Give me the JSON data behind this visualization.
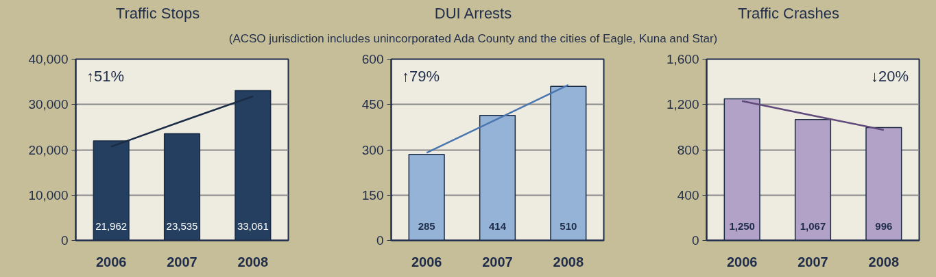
{
  "chart_data": [
    {
      "type": "bar",
      "title": "Traffic Stops",
      "categories": [
        "2006",
        "2007",
        "2008"
      ],
      "series": [
        {
          "color": "#243f60",
          "values": [
            21962,
            23535,
            33061
          ],
          "value_labels": [
            "21,962",
            "23,535",
            "33,061"
          ]
        },
        {
          "type": "line",
          "color": "#1a2b45",
          "values": [
            20700,
            26300,
            31800
          ]
        }
      ],
      "ylim": [
        0,
        40000
      ],
      "yticks": [
        0,
        {
          "value": 10000,
          "label": "10,000"
        },
        {
          "value": 20000,
          "label": "20,000"
        },
        {
          "value": 30000,
          "label": "30,000"
        },
        {
          "value": 40000,
          "label": "40,000"
        }
      ],
      "grid": "y",
      "annotations": [
        "↑51%"
      ]
    },
    {
      "type": "bar",
      "title": "DUI Arrests",
      "subtitle": "(ACSO jurisdiction includes unincorporated Ada County and the cities of Eagle, Kuna and Star)",
      "categories": [
        "2006",
        "2007",
        "2008"
      ],
      "series": [
        {
          "color": "#95b3d7",
          "values": [
            285,
            414,
            510
          ],
          "value_labels": [
            "285",
            "414",
            "510"
          ]
        },
        {
          "type": "line",
          "color": "#4a76b0",
          "values": [
            290,
            402,
            515
          ]
        }
      ],
      "ylim": [
        0,
        600
      ],
      "yticks": [
        0,
        150,
        300,
        450,
        600
      ],
      "grid": "y",
      "annotations": [
        "↑79%"
      ]
    },
    {
      "type": "bar",
      "title": "Traffic Crashes",
      "categories": [
        "2006",
        "2007",
        "2008"
      ],
      "series": [
        {
          "color": "#b3a2c7",
          "values": [
            1250,
            1067,
            996
          ],
          "value_labels": [
            "1,250",
            "1,067",
            "996"
          ]
        },
        {
          "type": "line",
          "color": "#604a7b",
          "values": [
            1230,
            1102,
            975
          ]
        }
      ],
      "ylim": [
        0,
        1600
      ],
      "yticks": [
        0,
        400,
        800,
        {
          "value": 1200,
          "label": "1,200"
        },
        {
          "value": 1600,
          "label": "1,600"
        }
      ],
      "grid": "y",
      "annotations": [
        "↓20%"
      ]
    }
  ]
}
